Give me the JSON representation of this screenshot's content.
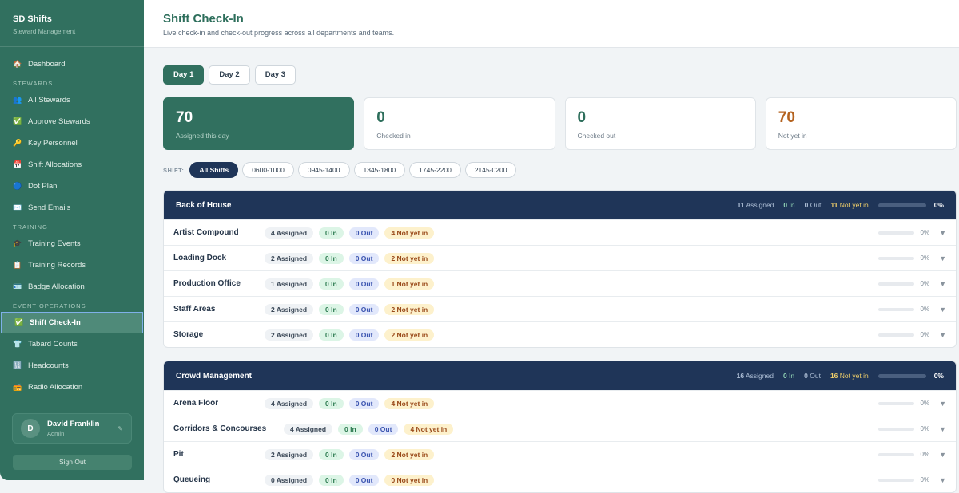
{
  "app": {
    "title": "SD Shifts",
    "subtitle": "Steward Management"
  },
  "nav": [
    {
      "type": "item",
      "icon": "🏠",
      "label": "Dashboard"
    },
    {
      "type": "section",
      "label": "STEWARDS"
    },
    {
      "type": "item",
      "icon": "👥",
      "label": "All Stewards"
    },
    {
      "type": "item",
      "icon": "✅",
      "label": "Approve Stewards"
    },
    {
      "type": "item",
      "icon": "🔑",
      "label": "Key Personnel"
    },
    {
      "type": "item",
      "icon": "📅",
      "label": "Shift Allocations"
    },
    {
      "type": "item",
      "icon": "🔵",
      "label": "Dot Plan"
    },
    {
      "type": "item",
      "icon": "✉️",
      "label": "Send Emails"
    },
    {
      "type": "section",
      "label": "TRAINING"
    },
    {
      "type": "item",
      "icon": "🎓",
      "label": "Training Events"
    },
    {
      "type": "item",
      "icon": "📋",
      "label": "Training Records"
    },
    {
      "type": "item",
      "icon": "🪪",
      "label": "Badge Allocation"
    },
    {
      "type": "section",
      "label": "EVENT OPERATIONS"
    },
    {
      "type": "item",
      "icon": "✅",
      "label": "Shift Check-In",
      "active": true
    },
    {
      "type": "item",
      "icon": "👕",
      "label": "Tabard Counts"
    },
    {
      "type": "item",
      "icon": "🔢",
      "label": "Headcounts"
    },
    {
      "type": "item",
      "icon": "📻",
      "label": "Radio Allocation"
    }
  ],
  "user": {
    "initial": "D",
    "name": "David Franklin",
    "role": "Admin",
    "edit_icon": "pencil-icon",
    "sign_out": "Sign Out"
  },
  "header": {
    "title": "Shift Check-In",
    "subtitle": "Live check-in and check-out progress across all departments and teams."
  },
  "days": [
    {
      "label": "Day 1",
      "active": true
    },
    {
      "label": "Day 2"
    },
    {
      "label": "Day 3"
    }
  ],
  "stats": [
    {
      "value": "70",
      "label": "Assigned this day",
      "style": "g"
    },
    {
      "value": "0",
      "label": "Checked in",
      "style": ""
    },
    {
      "value": "0",
      "label": "Checked out",
      "style": ""
    },
    {
      "value": "70",
      "label": "Not yet in",
      "style": "o"
    }
  ],
  "shift_filter": {
    "label": "SHIFT:",
    "options": [
      {
        "label": "All Shifts",
        "active": true
      },
      {
        "label": "0600-1000"
      },
      {
        "label": "0945-1400"
      },
      {
        "label": "1345-1800"
      },
      {
        "label": "1745-2200"
      },
      {
        "label": "2145-0200"
      }
    ]
  },
  "colors": {
    "primary": "#31705f",
    "navy": "#1f3558",
    "accent_orange": "#b4621f"
  },
  "groups": [
    {
      "name": "Back of House",
      "assigned": "11",
      "in": "0",
      "out": "0",
      "notin": "11",
      "percent": "0%",
      "rows": [
        {
          "name": "Artist Compound",
          "assigned": "4 Assigned",
          "in": "0 In",
          "out": "0 Out",
          "notin": "4 Not yet in",
          "percent": "0%"
        },
        {
          "name": "Loading Dock",
          "assigned": "2 Assigned",
          "in": "0 In",
          "out": "0 Out",
          "notin": "2 Not yet in",
          "percent": "0%"
        },
        {
          "name": "Production Office",
          "assigned": "1 Assigned",
          "in": "0 In",
          "out": "0 Out",
          "notin": "1 Not yet in",
          "percent": "0%"
        },
        {
          "name": "Staff Areas",
          "assigned": "2 Assigned",
          "in": "0 In",
          "out": "0 Out",
          "notin": "2 Not yet in",
          "percent": "0%"
        },
        {
          "name": "Storage",
          "assigned": "2 Assigned",
          "in": "0 In",
          "out": "0 Out",
          "notin": "2 Not yet in",
          "percent": "0%"
        }
      ]
    },
    {
      "name": "Crowd Management",
      "assigned": "16",
      "in": "0",
      "out": "0",
      "notin": "16",
      "percent": "0%",
      "rows": [
        {
          "name": "Arena Floor",
          "assigned": "4 Assigned",
          "in": "0 In",
          "out": "0 Out",
          "notin": "4 Not yet in",
          "percent": "0%"
        },
        {
          "name": "Corridors & Concourses",
          "assigned": "4 Assigned",
          "in": "0 In",
          "out": "0 Out",
          "notin": "4 Not yet in",
          "percent": "0%",
          "wide": true
        },
        {
          "name": "Pit",
          "assigned": "2 Assigned",
          "in": "0 In",
          "out": "0 Out",
          "notin": "2 Not yet in",
          "percent": "0%"
        },
        {
          "name": "Queueing",
          "assigned": "0 Assigned",
          "in": "0 In",
          "out": "0 Out",
          "notin": "0 Not yet in",
          "percent": "0%"
        }
      ]
    }
  ],
  "labels": {
    "assigned": "Assigned",
    "in": "In",
    "out": "Out",
    "notin": "Not yet in"
  }
}
